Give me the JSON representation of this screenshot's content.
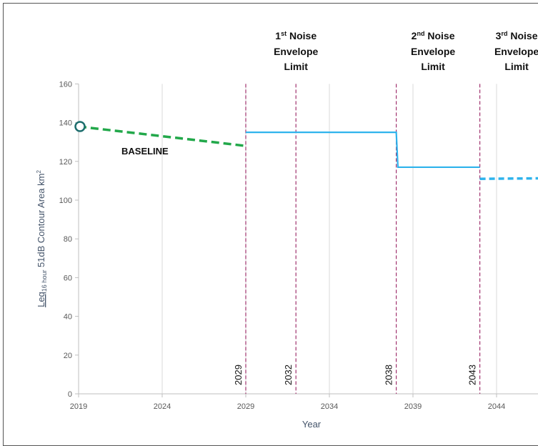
{
  "chart_data": {
    "type": "line",
    "title": "",
    "xlabel": "Year",
    "ylabel_main": "Leq",
    "ylabel_sub": "16 hour",
    "ylabel_rest": " 51dB Contour Area km",
    "ylabel_sup": "2",
    "xlim": [
      2019,
      2050
    ],
    "ylim": [
      0,
      160
    ],
    "x_ticks": [
      2019,
      2024,
      2029,
      2034,
      2039,
      2044
    ],
    "y_ticks": [
      0,
      20,
      40,
      60,
      80,
      100,
      120,
      140,
      160
    ],
    "grid": "vertical",
    "series": [
      {
        "name": "BASELINE",
        "style": "dashed",
        "color": "#22A84A",
        "points": [
          [
            2019,
            138
          ],
          [
            2029,
            128
          ]
        ],
        "start_marker": "open-circle"
      },
      {
        "name": "",
        "style": "solid",
        "color": "#2EB3EC",
        "points": [
          [
            2029,
            135
          ],
          [
            2038,
            135
          ],
          [
            2038.1,
            117
          ],
          [
            2043,
            117
          ]
        ]
      },
      {
        "name": "",
        "style": "dashed",
        "color": "#2EB3EC",
        "points": [
          [
            2043,
            111
          ],
          [
            2050,
            111.5
          ]
        ]
      }
    ],
    "vlines": [
      {
        "x": 2029,
        "label": "2029"
      },
      {
        "x": 2032,
        "label": "2032"
      },
      {
        "x": 2038,
        "label": "2038"
      },
      {
        "x": 2043,
        "label": "2043"
      }
    ],
    "vline_color": "#A0326E",
    "annotations": [
      {
        "at_x": 2032,
        "ord": "1",
        "ord_sup": "st",
        "line1": " Noise",
        "line2": "Envelope",
        "line3": "Limit"
      },
      {
        "at_x": 2040.2,
        "ord": "2",
        "ord_sup": "nd",
        "line1": " Noise",
        "line2": "Envelope",
        "line3": "Limit"
      },
      {
        "at_x": 2045.2,
        "ord": "3",
        "ord_sup": "rd",
        "line1": " Noise",
        "line2": "Envelope",
        "line3": "Limit"
      }
    ],
    "baseline_label": "BASELINE"
  }
}
